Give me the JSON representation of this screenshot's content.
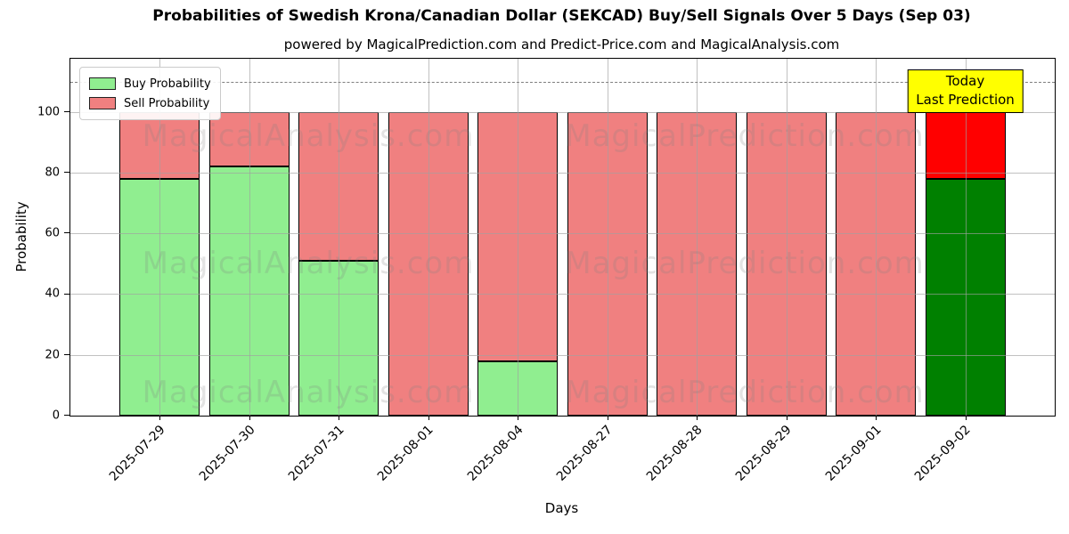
{
  "title": "Probabilities of Swedish Krona/Canadian Dollar (SEKCAD) Buy/Sell Signals Over 5 Days (Sep 03)",
  "subtitle": "powered by MagicalPrediction.com and Predict-Price.com and MagicalAnalysis.com",
  "legend": {
    "items": [
      {
        "label": "Buy Probability",
        "color": "#90EE90"
      },
      {
        "label": "Sell Probability",
        "color": "#F08080"
      }
    ]
  },
  "annotation": {
    "line1": "Today",
    "line2": "Last Prediction",
    "bg": "#FFFF00"
  },
  "watermarks": {
    "left": "MagicalAnalysis.com",
    "right": "MagicalPrediction.com"
  },
  "chart_data": {
    "type": "bar",
    "stacked": true,
    "title": "Probabilities of Swedish Krona/Canadian Dollar (SEKCAD) Buy/Sell Signals Over 5 Days (Sep 03)",
    "xlabel": "Days",
    "ylabel": "Probability",
    "categories": [
      "2025-07-29",
      "2025-07-30",
      "2025-07-31",
      "2025-08-01",
      "2025-08-04",
      "2025-08-27",
      "2025-08-28",
      "2025-08-29",
      "2025-09-01",
      "2025-09-02"
    ],
    "series": [
      {
        "name": "Buy Probability",
        "color": "#90EE90",
        "today_color": "#008000",
        "values": [
          78,
          82,
          51,
          0,
          18,
          0,
          0,
          0,
          0,
          78
        ]
      },
      {
        "name": "Sell Probability",
        "color": "#F08080",
        "today_color": "#FF0000",
        "values": [
          22,
          18,
          49,
          100,
          82,
          100,
          100,
          100,
          100,
          22
        ]
      }
    ],
    "yticks": [
      0,
      20,
      40,
      60,
      80,
      100
    ],
    "ylim": [
      0,
      117.5
    ],
    "dashed_line_y": 110,
    "today_index": 9,
    "grid": true,
    "legend_position": "upper-left"
  }
}
